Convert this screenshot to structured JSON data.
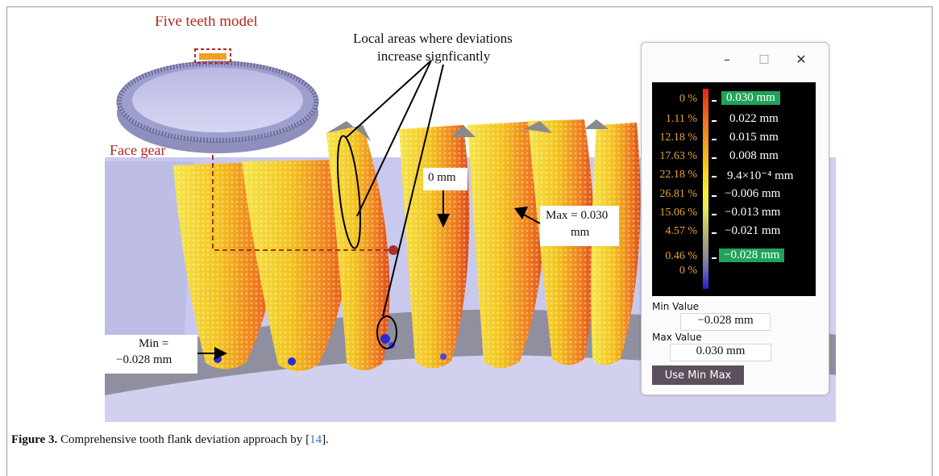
{
  "figure": {
    "annotations": {
      "five_teeth_model": "Five teeth model",
      "face_gear": "Face gear",
      "local_areas_line1": "Local areas where  deviations",
      "local_areas_line2": "increase signficantly",
      "zero_mm": "0 mm",
      "max_line1": "Max = 0.030",
      "max_line2": "mm",
      "min_line1": "Min =",
      "min_line2": "−0.028 mm"
    },
    "colors": {
      "background_gear": "#c9c9ee",
      "ground": "#9a9aa8",
      "high": "#e8501a",
      "mid": "#f2d21b",
      "low": "#2b2bd6",
      "red_marker": "#a4312a"
    }
  },
  "popup": {
    "window_buttons": {
      "minimize_icon": "–",
      "maximize_icon": "□",
      "close_icon": "✕"
    },
    "legend": [
      {
        "percent": "0 %",
        "value": "0.030 mm",
        "highlight": true
      },
      {
        "percent": "1.11 %",
        "value": "0.022 mm"
      },
      {
        "percent": "12.18 %",
        "value": "0.015 mm"
      },
      {
        "percent": "17.63 %",
        "value": "0.008 mm"
      },
      {
        "percent": "22.18 %",
        "value": "9.4×10⁻⁴ mm"
      },
      {
        "percent": "26.81 %",
        "value": "−0.006 mm"
      },
      {
        "percent": "15.06 %",
        "value": "−0.013 mm"
      },
      {
        "percent": "4.57 %",
        "value": "−0.021 mm"
      },
      {
        "percent": "0.46 %",
        "value": "−0.028 mm",
        "highlight": true
      },
      {
        "percent": "0 %",
        "value": ""
      }
    ],
    "min_label": "Min Value",
    "min_value": "−0.028 mm",
    "max_label": "Max Value",
    "max_value": "0.030 mm",
    "use_min_max_button": "Use Min Max"
  },
  "caption": {
    "label": "Figure 3.",
    "text": " Comprehensive tooth flank deviation approach by ",
    "ref_open": "[",
    "ref": "14",
    "ref_close": "]."
  }
}
